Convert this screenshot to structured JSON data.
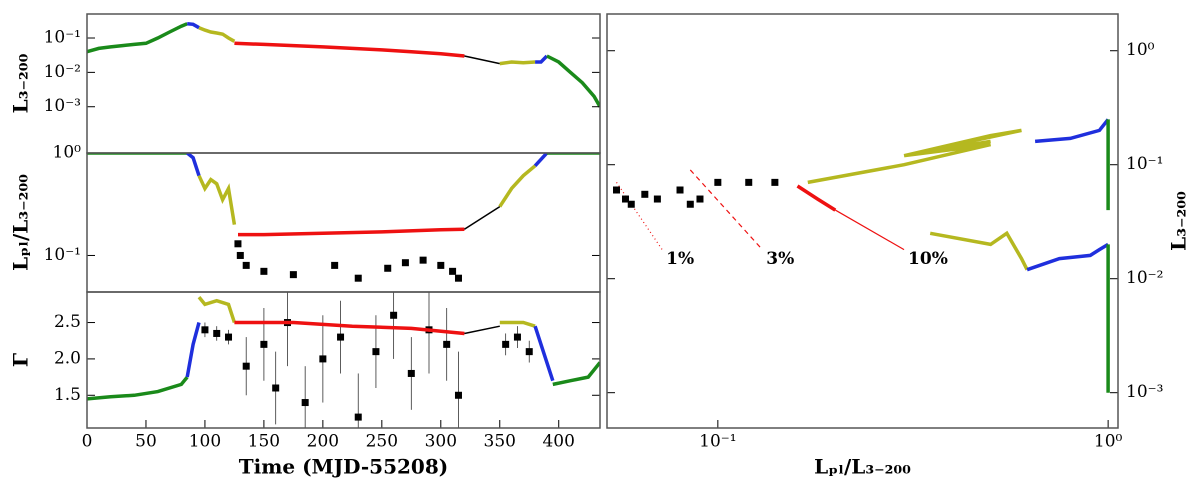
{
  "chart_data": [
    {
      "type": "line",
      "ylabel": "L₃₋₂₀₀",
      "ylog": true,
      "xlim": [
        0,
        435
      ],
      "ylim": [
        4.5e-05,
        0.5
      ],
      "yticks": [
        {
          "value": 0.001,
          "label": "10⁻³"
        },
        {
          "value": 0.01,
          "label": "10⁻²"
        },
        {
          "value": 0.1,
          "label": "10⁻¹"
        }
      ],
      "series": [
        {
          "color": "#1a8a1a",
          "x": [
            0,
            10,
            20,
            30,
            40,
            50,
            60,
            70,
            80,
            85
          ],
          "values": [
            0.04,
            0.05,
            0.055,
            0.06,
            0.065,
            0.07,
            0.1,
            0.15,
            0.22,
            0.26
          ]
        },
        {
          "color": "#1f2fdd",
          "x": [
            85,
            90,
            95
          ],
          "values": [
            0.26,
            0.25,
            0.2
          ]
        },
        {
          "color": "#b5b820",
          "x": [
            95,
            100,
            105,
            110,
            115,
            120,
            125
          ],
          "values": [
            0.2,
            0.17,
            0.15,
            0.14,
            0.13,
            0.1,
            0.08
          ]
        },
        {
          "color": "#ee1111",
          "x": [
            125,
            150,
            175,
            200,
            225,
            250,
            275,
            300,
            320
          ],
          "values": [
            0.07,
            0.065,
            0.06,
            0.055,
            0.05,
            0.045,
            0.04,
            0.035,
            0.03
          ]
        },
        {
          "color": "#000000",
          "x": [
            320,
            350
          ],
          "values": [
            0.03,
            0.018
          ]
        },
        {
          "color": "#b5b820",
          "x": [
            350,
            360,
            370,
            380
          ],
          "values": [
            0.018,
            0.02,
            0.019,
            0.02
          ]
        },
        {
          "color": "#1f2fdd",
          "x": [
            380,
            385,
            390
          ],
          "values": [
            0.02,
            0.02,
            0.03
          ]
        },
        {
          "color": "#1a8a1a",
          "x": [
            390,
            400,
            410,
            420,
            430,
            435
          ],
          "values": [
            0.03,
            0.02,
            0.01,
            0.005,
            0.002,
            0.001
          ]
        }
      ]
    },
    {
      "type": "line",
      "ylabel": "Lₚₗ/L₃₋₂₀₀",
      "ylog": true,
      "xlim": [
        0,
        435
      ],
      "ylim": [
        0.044,
        1
      ],
      "yticks": [
        {
          "value": 0.1,
          "label": "10⁻¹"
        },
        {
          "value": 1,
          "label": "10⁰"
        }
      ],
      "series": [
        {
          "color": "#1a8a1a",
          "x": [
            0,
            85
          ],
          "values": [
            1,
            1
          ]
        },
        {
          "color": "#1f2fdd",
          "x": [
            85,
            90,
            95
          ],
          "values": [
            1,
            0.9,
            0.6
          ]
        },
        {
          "color": "#b5b820",
          "x": [
            95,
            100,
            105,
            110,
            115,
            120,
            125
          ],
          "values": [
            0.6,
            0.45,
            0.55,
            0.5,
            0.35,
            0.45,
            0.2
          ]
        },
        {
          "color": "#ee1111",
          "x": [
            128,
            150,
            200,
            250,
            300,
            320
          ],
          "values": [
            0.16,
            0.16,
            0.165,
            0.17,
            0.178,
            0.18
          ]
        },
        {
          "color": "#000000",
          "x": [
            320,
            350
          ],
          "values": [
            0.18,
            0.3
          ]
        },
        {
          "color": "#b5b820",
          "x": [
            350,
            360,
            370,
            380
          ],
          "values": [
            0.3,
            0.45,
            0.6,
            0.75
          ]
        },
        {
          "color": "#1f2fdd",
          "x": [
            380,
            390
          ],
          "values": [
            0.75,
            1
          ]
        },
        {
          "color": "#1a8a1a",
          "x": [
            390,
            435
          ],
          "values": [
            1,
            1
          ]
        }
      ],
      "points": {
        "x": [
          128,
          130,
          135,
          150,
          175,
          210,
          230,
          255,
          270,
          285,
          300,
          310,
          315
        ],
        "values": [
          0.13,
          0.1,
          0.08,
          0.07,
          0.065,
          0.08,
          0.06,
          0.075,
          0.085,
          0.09,
          0.08,
          0.07,
          0.06
        ]
      }
    },
    {
      "type": "line",
      "ylabel": "Γ",
      "ylog": false,
      "xlabel": "Time (MJD-55208)",
      "xlim": [
        0,
        435
      ],
      "ylim": [
        1.05,
        2.92
      ],
      "xticks": [
        0,
        50,
        100,
        150,
        200,
        250,
        300,
        350,
        400
      ],
      "yticks": [
        1.5,
        {
          "value": 2,
          "label": "2.0"
        },
        2.5
      ],
      "series": [
        {
          "color": "#1a8a1a",
          "x": [
            0,
            20,
            40,
            60,
            80,
            85
          ],
          "values": [
            1.45,
            1.48,
            1.5,
            1.55,
            1.65,
            1.75
          ]
        },
        {
          "color": "#1f2fdd",
          "x": [
            85,
            90,
            95
          ],
          "values": [
            1.75,
            2.2,
            2.5
          ]
        },
        {
          "color": "#b5b820",
          "x": [
            95,
            100,
            110,
            120,
            125
          ],
          "values": [
            2.85,
            2.75,
            2.8,
            2.75,
            2.5
          ]
        },
        {
          "color": "#ee1111",
          "x": [
            125,
            175,
            225,
            275,
            320
          ],
          "values": [
            2.5,
            2.5,
            2.45,
            2.42,
            2.35
          ]
        },
        {
          "color": "#000000",
          "x": [
            320,
            350
          ],
          "values": [
            2.35,
            2.45
          ]
        },
        {
          "color": "#b5b820",
          "x": [
            350,
            370,
            380
          ],
          "values": [
            2.5,
            2.5,
            2.45
          ]
        },
        {
          "color": "#1f2fdd",
          "x": [
            380,
            385,
            395
          ],
          "values": [
            2.45,
            2.2,
            1.7
          ]
        },
        {
          "color": "#1a8a1a",
          "x": [
            395,
            410,
            425,
            435
          ],
          "values": [
            1.65,
            1.7,
            1.75,
            1.95
          ]
        }
      ],
      "points": {
        "x": [
          100,
          110,
          120,
          135,
          150,
          160,
          170,
          185,
          200,
          215,
          230,
          245,
          260,
          275,
          290,
          305,
          315,
          355,
          365,
          375
        ],
        "values": [
          2.4,
          2.35,
          2.3,
          1.9,
          2.2,
          1.6,
          2.5,
          1.4,
          2.0,
          2.3,
          1.2,
          2.1,
          2.6,
          1.8,
          2.4,
          2.2,
          1.5,
          2.2,
          2.3,
          2.1
        ],
        "errors": [
          0.1,
          0.1,
          0.1,
          0.4,
          0.5,
          0.5,
          0.6,
          0.5,
          0.6,
          0.5,
          0.6,
          0.5,
          0.6,
          0.5,
          0.6,
          0.5,
          0.6,
          0.15,
          0.15,
          0.15
        ]
      }
    },
    {
      "type": "line",
      "xlabel": "Lₚₗ/L₃₋₂₀₀",
      "ylabel": "L₃₋₂₀₀",
      "xlog": true,
      "ylog": true,
      "xlim": [
        0.052,
        1.06
      ],
      "ylim": [
        0.00049,
        2.1
      ],
      "xticks": [
        {
          "value": 0.1,
          "label": "10⁻¹"
        },
        {
          "value": 1,
          "label": "10⁰"
        }
      ],
      "yticks": [
        {
          "value": 0.001,
          "label": "10⁻³"
        },
        {
          "value": 0.01,
          "label": "10⁻²"
        },
        {
          "value": 0.1,
          "label": "10⁻¹"
        },
        {
          "value": 1,
          "label": "10⁰"
        }
      ],
      "series": [
        {
          "color": "#ee1111",
          "x": [
            0.16,
            0.18,
            0.2
          ],
          "values": [
            0.065,
            0.05,
            0.04
          ]
        },
        {
          "color": "#b5b820",
          "x": [
            0.17,
            0.3,
            0.5,
            0.3,
            0.5,
            0.6,
            0.3,
            0.5
          ],
          "values": [
            0.07,
            0.1,
            0.15,
            0.12,
            0.18,
            0.2,
            0.12,
            0.16
          ]
        },
        {
          "color": "#1f2fdd",
          "x": [
            0.65,
            0.8,
            0.95,
            1.0
          ],
          "values": [
            0.16,
            0.17,
            0.2,
            0.25
          ]
        },
        {
          "color": "#1a8a1a",
          "x": [
            1,
            1,
            1
          ],
          "values": [
            0.25,
            0.1,
            0.04
          ]
        },
        {
          "color": "#b5b820",
          "x": [
            0.35,
            0.5,
            0.55,
            0.6,
            0.62
          ],
          "values": [
            0.025,
            0.02,
            0.025,
            0.015,
            0.012
          ]
        },
        {
          "color": "#1f2fdd",
          "x": [
            0.62,
            0.75,
            0.9,
            0.95,
            1.0
          ],
          "values": [
            0.012,
            0.015,
            0.016,
            0.018,
            0.02
          ]
        },
        {
          "color": "#1a8a1a",
          "x": [
            1,
            1,
            1
          ],
          "values": [
            0.02,
            0.005,
            0.001
          ]
        }
      ],
      "points": {
        "x": [
          0.055,
          0.058,
          0.06,
          0.065,
          0.07,
          0.08,
          0.085,
          0.09,
          0.1,
          0.12,
          0.14
        ],
        "values": [
          0.06,
          0.05,
          0.045,
          0.055,
          0.05,
          0.06,
          0.045,
          0.05,
          0.07,
          0.07,
          0.07
        ]
      },
      "reference_lines": [
        {
          "label": "1%",
          "style": "dotted",
          "x": [
            0.055,
            0.072
          ],
          "y": [
            0.07,
            0.018
          ]
        },
        {
          "label": "3%",
          "style": "dashed",
          "x": [
            0.085,
            0.13
          ],
          "y": [
            0.09,
            0.018
          ]
        },
        {
          "label": "10%",
          "style": "solid",
          "x": [
            0.2,
            0.3
          ],
          "y": [
            0.04,
            0.018
          ]
        }
      ]
    }
  ]
}
